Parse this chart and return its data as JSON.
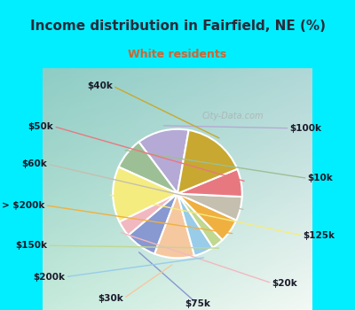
{
  "title": "Income distribution in Fairfield, NE (%)",
  "subtitle": "White residents",
  "title_color": "#2a2a3a",
  "subtitle_color": "#cc6633",
  "bg_cyan": "#00eeff",
  "chart_bg": "#e8f5f0",
  "labels": [
    "$100k",
    "$10k",
    "$125k",
    "$20k",
    "$75k",
    "$30k",
    "$200k",
    "$150k",
    "> $200k",
    "$60k",
    "$50k",
    "$40k"
  ],
  "values": [
    13,
    8,
    14,
    4,
    8,
    10,
    5,
    3,
    6,
    6,
    7,
    16
  ],
  "colors": [
    "#b5aad5",
    "#9dbf96",
    "#f5ec80",
    "#f2b8c0",
    "#8898d0",
    "#f5c8a0",
    "#98cce8",
    "#c0d890",
    "#f0b040",
    "#c5bfb0",
    "#e87880",
    "#c8a830"
  ],
  "wedge_edge_color": "white",
  "label_fontsize": 7.5,
  "label_color": "#1a1a2a",
  "startangle": 80
}
